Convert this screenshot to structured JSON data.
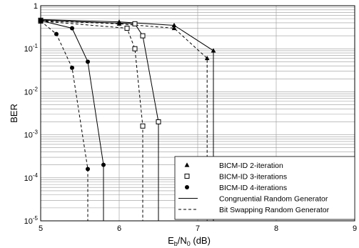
{
  "chart_data": {
    "type": "line",
    "title": "",
    "xlabel": {
      "main": "E",
      "sub1": "b",
      "mid": "/N",
      "sub2": "0",
      "tail": " (dB)"
    },
    "ylabel": "BER",
    "xlim": [
      5,
      9
    ],
    "ylim": [
      1e-05,
      1
    ],
    "y_scale": "log",
    "grid": true,
    "legend_position": "bottom-right",
    "x_ticks": [
      "5",
      "6",
      "7",
      "8",
      "9"
    ],
    "y_ticks": [
      {
        "base": "10",
        "exp": "-5"
      },
      {
        "base": "10",
        "exp": "-4"
      },
      {
        "base": "10",
        "exp": "-3"
      },
      {
        "base": "10",
        "exp": "-2"
      },
      {
        "base": "10",
        "exp": "-1"
      },
      {
        "base": "1",
        "exp": ""
      }
    ],
    "legend": [
      {
        "marker": "triangle",
        "line": "none",
        "label": "BICM-ID 2-iteration"
      },
      {
        "marker": "square",
        "line": "none",
        "label": "BICM-ID 3-iterations"
      },
      {
        "marker": "circle",
        "line": "none",
        "label": "BICM-ID 4-iterations"
      },
      {
        "marker": "none",
        "line": "solid",
        "label": "Congruential Random Generator"
      },
      {
        "marker": "none",
        "line": "dashed",
        "label": "Bit Swapping Random Generator"
      }
    ],
    "series": [
      {
        "marker": "triangle",
        "dash": "solid",
        "x": [
          5.0,
          6.0,
          6.7,
          7.2,
          7.2
        ],
        "y": [
          0.48,
          0.42,
          0.35,
          0.09,
          1e-05
        ]
      },
      {
        "marker": "triangle",
        "dash": "dashed",
        "x": [
          5.0,
          6.0,
          6.7,
          7.12,
          7.12
        ],
        "y": [
          0.45,
          0.38,
          0.3,
          0.06,
          1e-05
        ]
      },
      {
        "marker": "square",
        "dash": "solid",
        "x": [
          5.0,
          6.2,
          6.3,
          6.5,
          6.5
        ],
        "y": [
          0.46,
          0.38,
          0.2,
          0.002,
          1e-05
        ]
      },
      {
        "marker": "square",
        "dash": "dashed",
        "x": [
          5.0,
          6.1,
          6.2,
          6.3,
          6.3
        ],
        "y": [
          0.44,
          0.3,
          0.1,
          0.0016,
          1e-05
        ]
      },
      {
        "marker": "circle",
        "dash": "solid",
        "x": [
          5.0,
          5.4,
          5.6,
          5.8,
          5.8
        ],
        "y": [
          0.45,
          0.3,
          0.05,
          0.0002,
          1e-05
        ]
      },
      {
        "marker": "circle",
        "dash": "dashed",
        "x": [
          5.0,
          5.2,
          5.4,
          5.6,
          5.6
        ],
        "y": [
          0.44,
          0.22,
          0.036,
          0.00016,
          1e-05
        ]
      }
    ]
  }
}
